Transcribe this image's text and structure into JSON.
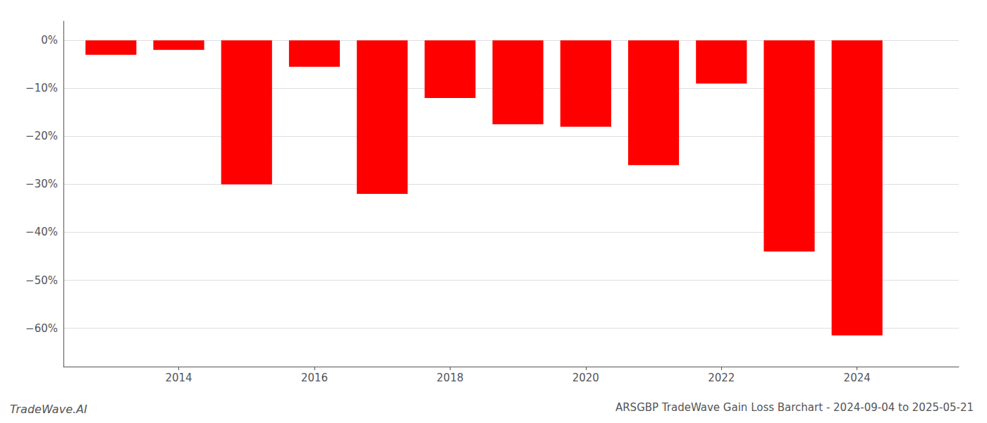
{
  "chart_data": {
    "type": "bar",
    "title": "ARSGBP TradeWave Gain Loss Barchart - 2024-09-04 to 2025-05-21",
    "annotations": [
      "TradeWave.AI"
    ],
    "x": [
      2013,
      2014,
      2015,
      2016,
      2017,
      2018,
      2019,
      2020,
      2021,
      2022,
      2023,
      2024
    ],
    "values": [
      -3.0,
      -2.0,
      -30.0,
      -5.5,
      -32.0,
      -12.0,
      -17.5,
      -18.0,
      -26.0,
      -9.0,
      -44.0,
      -61.5
    ],
    "color": "#ff0000",
    "xlim": [
      2012.3,
      2025.5
    ],
    "xticks": [
      2014,
      2016,
      2018,
      2020,
      2022,
      2024
    ],
    "ylim": [
      -68,
      4
    ],
    "yticks": [
      {
        "value": 0,
        "label": "0%"
      },
      {
        "value": -10,
        "label": "−10%"
      },
      {
        "value": -20,
        "label": "−20%"
      },
      {
        "value": -30,
        "label": "−30%"
      },
      {
        "value": -40,
        "label": "−40%"
      },
      {
        "value": -50,
        "label": "−50%"
      },
      {
        "value": -60,
        "label": "−60%"
      }
    ],
    "grid": true
  }
}
